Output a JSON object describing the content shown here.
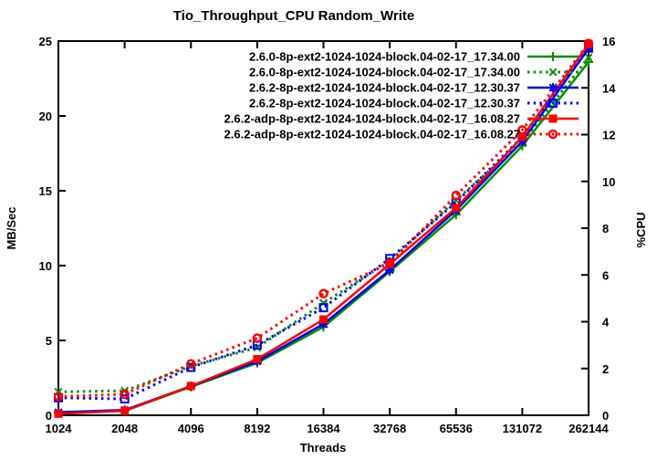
{
  "title": "Tio_Throughput_CPU Random_Write",
  "chart_data": {
    "type": "line",
    "title": "Tio_Throughput_CPU Random_Write",
    "xlabel": "Threads",
    "ylabel_left": "MB/Sec",
    "ylabel_right": "%CPU",
    "x_categories": [
      "1024",
      "2048",
      "4096",
      "8192",
      "16384",
      "32768",
      "65536",
      "131072",
      "262144"
    ],
    "left_axis": {
      "ticks": [
        0,
        5,
        10,
        15,
        20,
        25
      ],
      "range": [
        0,
        25
      ]
    },
    "right_axis": {
      "ticks": [
        0,
        2,
        4,
        6,
        8,
        10,
        12,
        14,
        16
      ],
      "range": [
        0,
        16
      ]
    },
    "grid": false,
    "legend_position": "top-right-inside",
    "series": [
      {
        "name": "2.6.0-8p-ext2-1024-1024-block.04-02-17_17.34.00",
        "color": "#008f00",
        "axis": "left",
        "dash": false,
        "marker": "plus",
        "values": [
          0.2,
          0.3,
          1.9,
          3.5,
          5.9,
          9.6,
          13.4,
          18.0,
          23.6
        ]
      },
      {
        "name": "2.6.0-8p-ext2-1024-1024-block.04-02-17_17.34.00",
        "color": "#008f00",
        "axis": "right",
        "dash": true,
        "marker": "cross",
        "values": [
          1.0,
          1.05,
          2.1,
          2.9,
          4.8,
          6.6,
          9.2,
          11.7,
          15.3
        ]
      },
      {
        "name": "2.6.2-8p-ext2-1024-1024-block.04-02-17_12.30.37",
        "color": "#0000f0",
        "axis": "left",
        "dash": false,
        "marker": "asterisk",
        "values": [
          0.2,
          0.35,
          1.95,
          3.6,
          6.1,
          9.7,
          13.7,
          18.3,
          24.5
        ]
      },
      {
        "name": "2.6.2-8p-ext2-1024-1024-block.04-02-17_12.30.37",
        "color": "#0000f0",
        "axis": "right",
        "dash": true,
        "marker": "square-open",
        "values": [
          0.75,
          0.7,
          2.05,
          3.0,
          4.6,
          6.7,
          9.1,
          11.9,
          15.7
        ]
      },
      {
        "name": "2.6.2-adp-8p-ext2-1024-1024-block.04-02-17_16.08.27",
        "color": "#ff0000",
        "axis": "left",
        "dash": false,
        "marker": "square-filled",
        "values": [
          0.1,
          0.3,
          1.95,
          3.75,
          6.4,
          10.1,
          13.85,
          18.6,
          24.8
        ]
      },
      {
        "name": "2.6.2-adp-8p-ext2-1024-1024-block.04-02-17_16.08.27",
        "color": "#ff0000",
        "axis": "right",
        "dash": true,
        "marker": "circle-open",
        "values": [
          0.8,
          0.9,
          2.2,
          3.3,
          5.2,
          6.5,
          9.4,
          12.2,
          15.9
        ]
      }
    ]
  },
  "colors": {
    "background": "#ffffff",
    "axis": "#000000",
    "green": "#008f00",
    "blue": "#0000f0",
    "red": "#ff0000"
  }
}
